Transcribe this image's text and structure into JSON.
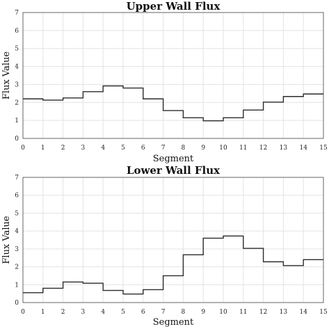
{
  "chart_data": [
    {
      "type": "line",
      "drawstyle": "steps-post",
      "title": "Upper Wall Flux",
      "xlabel": "Segment",
      "ylabel": "Flux Value",
      "xlim": [
        0,
        15
      ],
      "ylim": [
        0,
        7
      ],
      "xticks": [
        "0",
        "1",
        "2",
        "3",
        "4",
        "5",
        "6",
        "7",
        "8",
        "9",
        "10",
        "11",
        "12",
        "13",
        "14",
        "15"
      ],
      "yticks": [
        "0",
        "1",
        "2",
        "3",
        "4",
        "5",
        "6",
        "7"
      ],
      "grid": true,
      "x": [
        0,
        1,
        2,
        3,
        4,
        5,
        6,
        7,
        8,
        9,
        10,
        11,
        12,
        13,
        14,
        15
      ],
      "values": [
        2.2,
        2.13,
        2.25,
        2.6,
        2.92,
        2.8,
        2.2,
        1.55,
        1.15,
        0.98,
        1.15,
        1.58,
        2.02,
        2.33,
        2.47,
        2.47
      ]
    },
    {
      "type": "line",
      "drawstyle": "steps-post",
      "title": "Lower Wall Flux",
      "xlabel": "Segment",
      "ylabel": "Flux Value",
      "xlim": [
        0,
        15
      ],
      "ylim": [
        0,
        7
      ],
      "xticks": [
        "0",
        "1",
        "2",
        "3",
        "4",
        "5",
        "6",
        "7",
        "8",
        "9",
        "10",
        "11",
        "12",
        "13",
        "14",
        "15"
      ],
      "yticks": [
        "0",
        "1",
        "2",
        "3",
        "4",
        "5",
        "6",
        "7"
      ],
      "grid": true,
      "x": [
        0,
        1,
        2,
        3,
        4,
        5,
        6,
        7,
        8,
        9,
        10,
        11,
        12,
        13,
        14,
        15
      ],
      "values": [
        0.55,
        0.8,
        1.15,
        1.08,
        0.68,
        0.48,
        0.72,
        1.5,
        2.67,
        3.6,
        3.72,
        3.03,
        2.28,
        2.07,
        2.4,
        2.4
      ]
    }
  ]
}
